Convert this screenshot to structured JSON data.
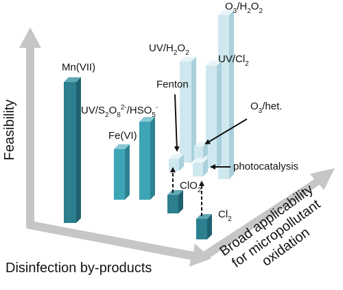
{
  "axes": {
    "y_label": "Feasibility",
    "x_label": "Disinfection by-products",
    "z_label": [
      "Broad applicability",
      "for micropollutant",
      "oxidation"
    ]
  },
  "nodes": [
    {
      "parts": [
        {
          "text": "Mn(VII)"
        }
      ]
    },
    {
      "parts": [
        {
          "text": "Fe(VI)"
        }
      ]
    },
    {
      "parts": [
        {
          "text": "UV/S"
        },
        {
          "text": "2",
          "style": "sub"
        },
        {
          "text": "O"
        },
        {
          "text": "8",
          "style": "sub"
        },
        {
          "text": "2-",
          "style": "sup"
        },
        {
          "text": "/HSO"
        },
        {
          "text": "5",
          "style": "sub"
        },
        {
          "text": "-",
          "style": "sup"
        }
      ]
    },
    {
      "parts": [
        {
          "text": "Fenton"
        }
      ]
    },
    {
      "parts": [
        {
          "text": "UV/H"
        },
        {
          "text": "2",
          "style": "sub"
        },
        {
          "text": "O"
        },
        {
          "text": "2",
          "style": "sub"
        }
      ]
    },
    {
      "parts": [
        {
          "text": "O"
        },
        {
          "text": "3",
          "style": "sub"
        },
        {
          "text": "/H"
        },
        {
          "text": "2",
          "style": "sub"
        },
        {
          "text": "O"
        },
        {
          "text": "2",
          "style": "sub"
        }
      ]
    },
    {
      "parts": [
        {
          "text": "UV/Cl"
        },
        {
          "text": "2",
          "style": "sub"
        }
      ]
    },
    {
      "parts": [
        {
          "text": "O"
        },
        {
          "text": "3",
          "style": "sub"
        },
        {
          "text": "/het."
        }
      ]
    },
    {
      "parts": [
        {
          "text": "photocatalysis"
        }
      ]
    },
    {
      "parts": [
        {
          "text": "ClO"
        },
        {
          "text": "2",
          "style": "sub"
        }
      ]
    },
    {
      "parts": [
        {
          "text": "Cl"
        },
        {
          "text": "2",
          "style": "sub"
        }
      ]
    }
  ]
}
